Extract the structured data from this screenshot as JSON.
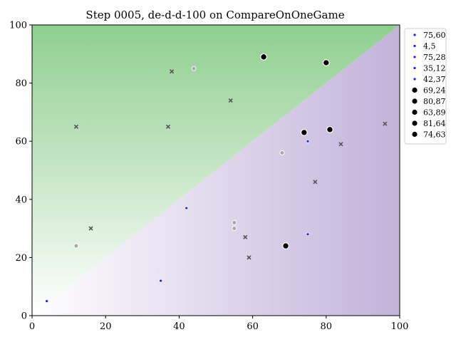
{
  "chart_data": {
    "type": "scatter",
    "title": "Step 0005, de-d-d-100 on CompareOnOneGame",
    "xlabel": "",
    "ylabel": "",
    "xlim": [
      0,
      100
    ],
    "ylim": [
      0,
      100
    ],
    "x_ticks": [
      "0",
      "20",
      "40",
      "60",
      "80",
      "100"
    ],
    "y_ticks": [
      "0",
      "20",
      "40",
      "60",
      "80",
      "100"
    ],
    "grid": false,
    "legend_position": "outside-right-top",
    "background": {
      "description": "diagonal split along y = x: above green, below purple, both fading to white at origin",
      "upper_color": "#8fce8f",
      "lower_color": "#c2b2da"
    },
    "series_colors": {
      "small": "#1a1aff",
      "large": "#000000",
      "gray_dot": "#a8a8a8",
      "x_marker": "#555555"
    },
    "legend": [
      {
        "label": "75,60",
        "marker": "small"
      },
      {
        "label": "4,5",
        "marker": "small"
      },
      {
        "label": "75,28",
        "marker": "small"
      },
      {
        "label": "35,12",
        "marker": "small"
      },
      {
        "label": "42,37",
        "marker": "small"
      },
      {
        "label": "69,24",
        "marker": "large"
      },
      {
        "label": "80,87",
        "marker": "large"
      },
      {
        "label": "63,89",
        "marker": "large"
      },
      {
        "label": "81,64",
        "marker": "large"
      },
      {
        "label": "74,63",
        "marker": "large"
      }
    ],
    "points_small": [
      {
        "x": 75,
        "y": 60
      },
      {
        "x": 4,
        "y": 5
      },
      {
        "x": 75,
        "y": 28
      },
      {
        "x": 35,
        "y": 12
      },
      {
        "x": 42,
        "y": 37
      }
    ],
    "points_large": [
      {
        "x": 69,
        "y": 24
      },
      {
        "x": 80,
        "y": 87
      },
      {
        "x": 63,
        "y": 89
      },
      {
        "x": 81,
        "y": 64
      },
      {
        "x": 74,
        "y": 63
      }
    ],
    "points_gray": [
      {
        "x": 44,
        "y": 85
      },
      {
        "x": 68,
        "y": 56
      },
      {
        "x": 55,
        "y": 32
      },
      {
        "x": 55,
        "y": 30
      },
      {
        "x": 12,
        "y": 24
      }
    ],
    "points_x": [
      {
        "x": 38,
        "y": 84
      },
      {
        "x": 54,
        "y": 74
      },
      {
        "x": 12,
        "y": 65
      },
      {
        "x": 37,
        "y": 65
      },
      {
        "x": 96,
        "y": 66
      },
      {
        "x": 84,
        "y": 59
      },
      {
        "x": 77,
        "y": 46
      },
      {
        "x": 16,
        "y": 30
      },
      {
        "x": 58,
        "y": 27
      },
      {
        "x": 59,
        "y": 20
      }
    ]
  }
}
